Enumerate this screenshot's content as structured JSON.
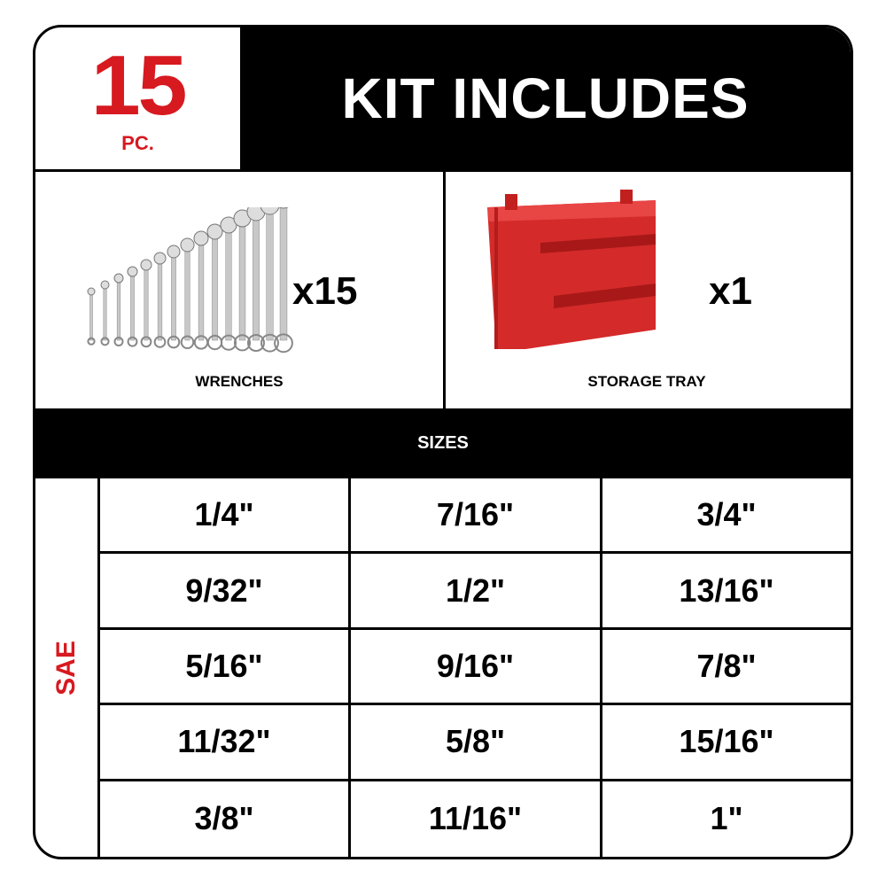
{
  "header": {
    "count": "15",
    "count_unit": "PC.",
    "title": "KIT INCLUDES"
  },
  "items": [
    {
      "label": "WRENCHES",
      "quantity": "x15",
      "icon": "wrench-set-image"
    },
    {
      "label": "STORAGE TRAY",
      "quantity": "x1",
      "icon": "storage-tray-image"
    }
  ],
  "sizes": {
    "title": "SIZES",
    "standard": "SAE",
    "cells": [
      "1/4\"",
      "7/16\"",
      "3/4\"",
      "9/32\"",
      "1/2\"",
      "13/16\"",
      "5/16\"",
      "9/16\"",
      "7/8\"",
      "11/32\"",
      "5/8\"",
      "15/16\"",
      "3/8\"",
      "11/16\"",
      "1\""
    ]
  },
  "colors": {
    "accent": "#d71920",
    "dark": "#000000"
  }
}
